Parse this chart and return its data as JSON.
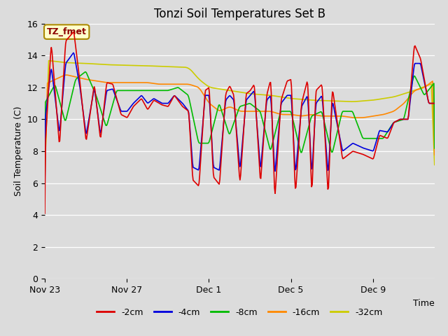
{
  "title": "Tonzi Soil Temperatures Set B",
  "xlabel": "Time",
  "ylabel": "Soil Temperature (C)",
  "ylim": [
    0,
    16
  ],
  "yticks": [
    0,
    2,
    4,
    6,
    8,
    10,
    12,
    14,
    16
  ],
  "xtick_labels": [
    "Nov 23",
    "Nov 27",
    "Dec 1",
    "Dec 5",
    "Dec 9"
  ],
  "xtick_pos": [
    0,
    4,
    8,
    12,
    16
  ],
  "xlim": [
    0,
    19
  ],
  "legend_labels": [
    "-2cm",
    "-4cm",
    "-8cm",
    "-16cm",
    "-32cm"
  ],
  "line_colors": [
    "#dd0000",
    "#0000dd",
    "#00bb00",
    "#ff8800",
    "#cccc00"
  ],
  "annotation_text": "TZ_fmet",
  "annotation_bg": "#ffffcc",
  "annotation_border": "#aa8800",
  "plot_bg": "#dcdcdc",
  "fig_bg": "#dcdcdc",
  "grid_color": "#ffffff",
  "title_fontsize": 12,
  "axis_fontsize": 9,
  "tick_fontsize": 9,
  "legend_fontsize": 9,
  "linewidth": 1.2
}
